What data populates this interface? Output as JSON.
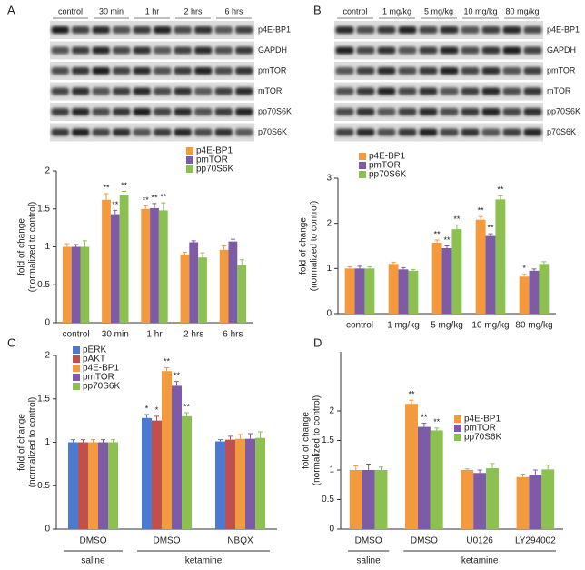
{
  "blots": [
    {
      "lanes": [
        "control",
        "30 min",
        "1 hr",
        "2 hrs",
        "6 hrs"
      ],
      "rows": [
        "p4E-BP1",
        "GAPDH",
        "pmTOR",
        "mTOR",
        "pp70S6K",
        "p70S6K"
      ]
    },
    {
      "lanes": [
        "control",
        "1 mg/kg",
        "5 mg/kg",
        "10 mg/kg",
        "80 mg/kg"
      ],
      "rows": [
        "p4E-BP1",
        "GAPDH",
        "pmTOR",
        "mTOR",
        "pp70S6K",
        "p70S6K"
      ]
    }
  ],
  "chart_data": [
    {
      "type": "bar",
      "panel": "A",
      "ylabel": [
        "fold of change",
        "(normalized to control)"
      ],
      "categories": [
        "control",
        "30 min",
        "1 hr",
        "2 hrs",
        "6 hrs"
      ],
      "ylim": [
        0,
        2
      ],
      "yticks": [
        0,
        0.5,
        1,
        1.5,
        2
      ],
      "series": [
        {
          "name": "p4E-BP1",
          "color": "#f39a3e",
          "values": [
            1.0,
            1.62,
            1.5,
            0.9,
            0.96
          ],
          "errors": [
            0.04,
            0.08,
            0.04,
            0.03,
            0.05
          ],
          "significance": [
            null,
            "**",
            "**",
            null,
            null
          ]
        },
        {
          "name": "pmTOR",
          "color": "#7d5ba6",
          "values": [
            1.0,
            1.43,
            1.51,
            1.06,
            1.07
          ],
          "errors": [
            0.03,
            0.05,
            0.06,
            0.02,
            0.03
          ],
          "significance": [
            null,
            "**",
            "**",
            null,
            null
          ]
        },
        {
          "name": "pp70S6K",
          "color": "#8cc152",
          "values": [
            1.0,
            1.68,
            1.48,
            0.86,
            0.76
          ],
          "errors": [
            0.08,
            0.05,
            0.1,
            0.06,
            0.07
          ],
          "significance": [
            null,
            "**",
            "**",
            null,
            null
          ]
        }
      ]
    },
    {
      "type": "bar",
      "panel": "B",
      "ylabel": [
        "fold of change",
        "(normalized to control)"
      ],
      "categories": [
        "control",
        "1 mg/kg",
        "5 mg/kg",
        "10 mg/kg",
        "80 mg/kg"
      ],
      "ylim": [
        0,
        3
      ],
      "yticks": [
        0,
        1,
        2,
        3
      ],
      "series": [
        {
          "name": "p4E-BP1",
          "color": "#f39a3e",
          "values": [
            1.0,
            1.1,
            1.57,
            2.08,
            0.82
          ],
          "errors": [
            0.04,
            0.04,
            0.06,
            0.07,
            0.05
          ],
          "significance": [
            null,
            null,
            "**",
            "**",
            "*"
          ]
        },
        {
          "name": "pmTOR",
          "color": "#7d5ba6",
          "values": [
            1.0,
            0.98,
            1.45,
            1.72,
            0.95
          ],
          "errors": [
            0.05,
            0.04,
            0.05,
            0.05,
            0.04
          ],
          "significance": [
            null,
            null,
            "**",
            "**",
            null
          ]
        },
        {
          "name": "pp70S6K",
          "color": "#8cc152",
          "values": [
            1.0,
            0.95,
            1.87,
            2.53,
            1.1
          ],
          "errors": [
            0.04,
            0.03,
            0.09,
            0.08,
            0.05
          ],
          "significance": [
            null,
            null,
            "**",
            "**",
            null
          ]
        }
      ]
    },
    {
      "type": "bar",
      "panel": "C",
      "ylabel": [
        "fold of change",
        "(normalized to control)"
      ],
      "categories": [
        "DMSO",
        "DMSO",
        "NBQX"
      ],
      "groups": [
        {
          "label": "saline",
          "size": 1
        },
        {
          "label": "ketamine",
          "size": 2
        }
      ],
      "ylim": [
        0,
        2
      ],
      "yticks": [
        0,
        0.5,
        1,
        1.5,
        2
      ],
      "series": [
        {
          "name": "pERK",
          "color": "#4a7bd0",
          "values": [
            1.0,
            1.28,
            1.01
          ],
          "errors": [
            0.03,
            0.04,
            0.02
          ],
          "significance": [
            null,
            "*",
            null
          ]
        },
        {
          "name": "pAKT",
          "color": "#c0504d",
          "values": [
            1.0,
            1.25,
            1.03
          ],
          "errors": [
            0.03,
            0.05,
            0.04
          ],
          "significance": [
            null,
            "*",
            null
          ]
        },
        {
          "name": "p4E-BP1",
          "color": "#f39a3e",
          "values": [
            1.0,
            1.82,
            1.04
          ],
          "errors": [
            0.03,
            0.04,
            0.05
          ],
          "significance": [
            null,
            "**",
            null
          ]
        },
        {
          "name": "pmTOR",
          "color": "#7d5ba6",
          "values": [
            1.0,
            1.65,
            1.04
          ],
          "errors": [
            0.03,
            0.05,
            0.06
          ],
          "significance": [
            null,
            "**",
            null
          ]
        },
        {
          "name": "pp70S6K",
          "color": "#8cc152",
          "values": [
            1.0,
            1.3,
            1.05
          ],
          "errors": [
            0.03,
            0.04,
            0.07
          ],
          "significance": [
            null,
            "**",
            null
          ]
        }
      ]
    },
    {
      "type": "bar",
      "panel": "D",
      "ylabel": [
        "fold of change",
        "(normalized to control)"
      ],
      "categories": [
        "DMSO",
        "DMSO",
        "U0126",
        "LY294002"
      ],
      "groups": [
        {
          "label": "saline",
          "size": 1
        },
        {
          "label": "ketamine",
          "size": 3
        }
      ],
      "ylim": [
        0,
        3
      ],
      "yticks": [
        0,
        0.5,
        1,
        1.5,
        2
      ],
      "series": [
        {
          "name": "p4E-BP1",
          "color": "#f39a3e",
          "values": [
            1.0,
            2.12,
            1.0,
            0.88
          ],
          "errors": [
            0.07,
            0.06,
            0.02,
            0.05
          ],
          "significance": [
            null,
            "**",
            null,
            null
          ]
        },
        {
          "name": "pmTOR",
          "color": "#7d5ba6",
          "values": [
            1.0,
            1.73,
            0.95,
            0.92
          ],
          "errors": [
            0.1,
            0.06,
            0.05,
            0.08
          ],
          "significance": [
            null,
            "**",
            null,
            null
          ]
        },
        {
          "name": "pp70S6K",
          "color": "#8cc152",
          "values": [
            1.0,
            1.67,
            1.03,
            1.01
          ],
          "errors": [
            0.05,
            0.04,
            0.08,
            0.07
          ],
          "significance": [
            null,
            "**",
            null,
            null
          ]
        }
      ]
    }
  ]
}
